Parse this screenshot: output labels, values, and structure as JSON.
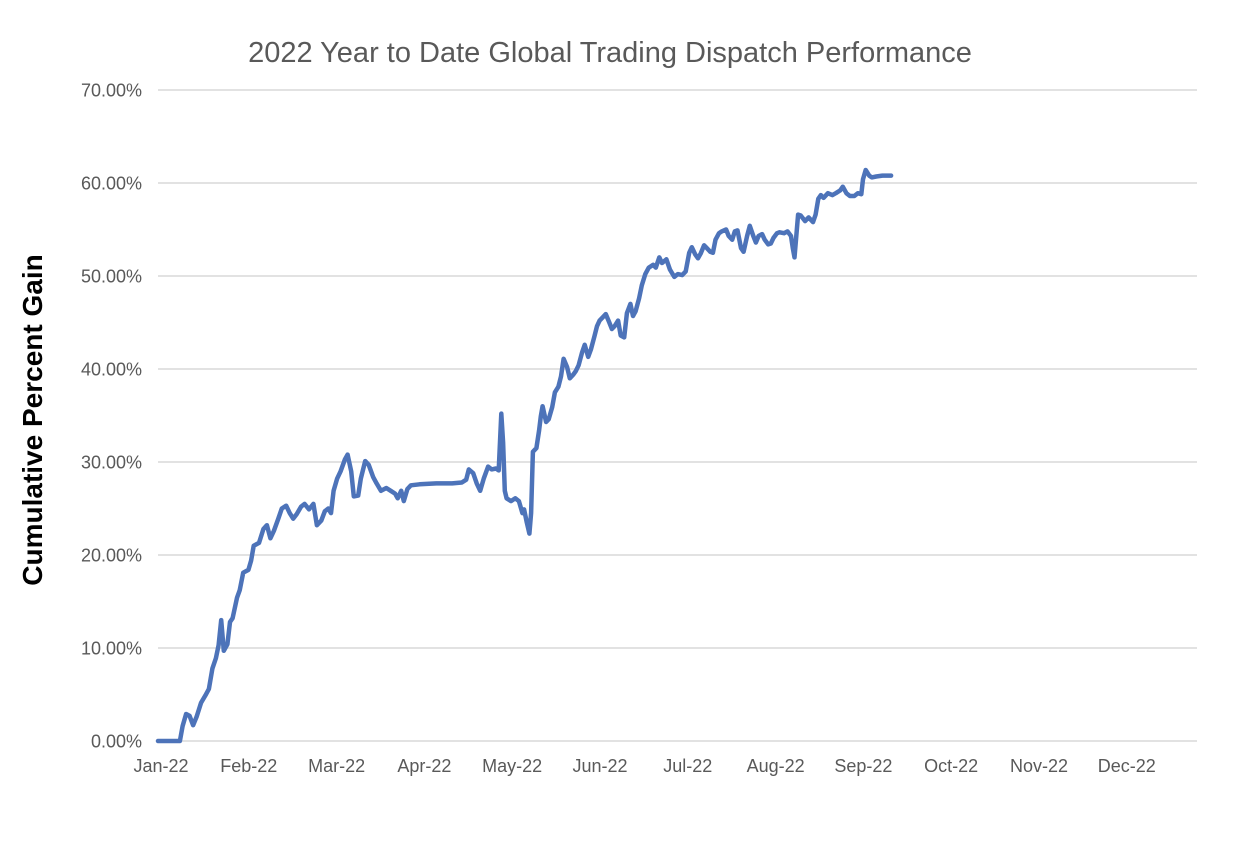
{
  "chart_data": {
    "type": "line",
    "title": "2022 Year to Date Global Trading Dispatch Performance",
    "ylabel": "Cumulative Percent Gain",
    "xlabel": "",
    "legend": "none",
    "grid": "horizontal",
    "background_color": "#ffffff",
    "grid_color": "#d9d9d9",
    "text_color": "#595959",
    "line_color": "#4d73b9",
    "ylim": [
      0,
      70
    ],
    "y_ticks": [
      {
        "value": 0,
        "label": "0.00%"
      },
      {
        "value": 10,
        "label": "10.00%"
      },
      {
        "value": 20,
        "label": "20.00%"
      },
      {
        "value": 30,
        "label": "30.00%"
      },
      {
        "value": 40,
        "label": "40.00%"
      },
      {
        "value": 50,
        "label": "50.00%"
      },
      {
        "value": 60,
        "label": "60.00%"
      },
      {
        "value": 70,
        "label": "70.00%"
      }
    ],
    "x_ticks": [
      "Jan-22",
      "Feb-22",
      "Mar-22",
      "Apr-22",
      "May-22",
      "Jun-22",
      "Jul-22",
      "Aug-22",
      "Sep-22",
      "Oct-22",
      "Nov-22",
      "Dec-22"
    ],
    "x_unit": "months since Jan-22 tick (0 = Jan-22)",
    "y_unit": "cumulative percent gain",
    "series": [
      {
        "name": "2022 YTD cumulative percent gain",
        "points": [
          [
            0.0,
            0.0
          ],
          [
            0.25,
            0.0
          ],
          [
            0.28,
            1.6
          ],
          [
            0.32,
            2.9
          ],
          [
            0.36,
            2.7
          ],
          [
            0.4,
            1.7
          ],
          [
            0.44,
            2.6
          ],
          [
            0.49,
            4.1
          ],
          [
            0.54,
            4.9
          ],
          [
            0.58,
            5.6
          ],
          [
            0.62,
            7.8
          ],
          [
            0.66,
            8.9
          ],
          [
            0.69,
            10.3
          ],
          [
            0.72,
            13.0
          ],
          [
            0.75,
            9.7
          ],
          [
            0.79,
            10.4
          ],
          [
            0.82,
            12.8
          ],
          [
            0.85,
            13.2
          ],
          [
            0.9,
            15.4
          ],
          [
            0.93,
            16.2
          ],
          [
            0.97,
            18.1
          ],
          [
            1.03,
            18.4
          ],
          [
            1.06,
            19.4
          ],
          [
            1.09,
            21.0
          ],
          [
            1.15,
            21.3
          ],
          [
            1.2,
            22.8
          ],
          [
            1.24,
            23.2
          ],
          [
            1.28,
            21.8
          ],
          [
            1.32,
            22.6
          ],
          [
            1.37,
            23.9
          ],
          [
            1.41,
            25.0
          ],
          [
            1.46,
            25.3
          ],
          [
            1.5,
            24.5
          ],
          [
            1.54,
            23.9
          ],
          [
            1.58,
            24.4
          ],
          [
            1.63,
            25.2
          ],
          [
            1.67,
            25.5
          ],
          [
            1.72,
            24.9
          ],
          [
            1.77,
            25.5
          ],
          [
            1.81,
            23.2
          ],
          [
            1.86,
            23.7
          ],
          [
            1.9,
            24.7
          ],
          [
            1.94,
            25.0
          ],
          [
            1.97,
            24.5
          ],
          [
            2.0,
            26.9
          ],
          [
            2.04,
            28.2
          ],
          [
            2.08,
            29.0
          ],
          [
            2.13,
            30.3
          ],
          [
            2.16,
            30.8
          ],
          [
            2.2,
            29.0
          ],
          [
            2.23,
            26.3
          ],
          [
            2.28,
            26.4
          ],
          [
            2.31,
            28.2
          ],
          [
            2.36,
            30.1
          ],
          [
            2.4,
            29.7
          ],
          [
            2.45,
            28.4
          ],
          [
            2.49,
            27.7
          ],
          [
            2.54,
            26.9
          ],
          [
            2.6,
            27.2
          ],
          [
            2.65,
            26.9
          ],
          [
            2.7,
            26.6
          ],
          [
            2.73,
            26.1
          ],
          [
            2.77,
            26.9
          ],
          [
            2.8,
            25.8
          ],
          [
            2.84,
            27.1
          ],
          [
            2.88,
            27.5
          ],
          [
            2.98,
            27.6
          ],
          [
            3.17,
            27.7
          ],
          [
            3.35,
            27.7
          ],
          [
            3.46,
            27.8
          ],
          [
            3.51,
            28.1
          ],
          [
            3.54,
            29.2
          ],
          [
            3.59,
            28.8
          ],
          [
            3.63,
            27.7
          ],
          [
            3.67,
            26.9
          ],
          [
            3.71,
            28.2
          ],
          [
            3.76,
            29.5
          ],
          [
            3.8,
            29.2
          ],
          [
            3.85,
            29.3
          ],
          [
            3.88,
            29.1
          ],
          [
            3.91,
            35.2
          ],
          [
            3.93,
            32.1
          ],
          [
            3.95,
            26.9
          ],
          [
            3.97,
            26.1
          ],
          [
            4.02,
            25.8
          ],
          [
            4.07,
            26.1
          ],
          [
            4.11,
            25.8
          ],
          [
            4.15,
            24.5
          ],
          [
            4.17,
            24.9
          ],
          [
            4.2,
            23.5
          ],
          [
            4.23,
            22.3
          ],
          [
            4.25,
            24.5
          ],
          [
            4.27,
            31.1
          ],
          [
            4.31,
            31.5
          ],
          [
            4.34,
            33.4
          ],
          [
            4.36,
            34.9
          ],
          [
            4.38,
            36.0
          ],
          [
            4.42,
            34.3
          ],
          [
            4.45,
            34.6
          ],
          [
            4.49,
            35.9
          ],
          [
            4.52,
            37.5
          ],
          [
            4.56,
            38.1
          ],
          [
            4.59,
            39.2
          ],
          [
            4.62,
            41.1
          ],
          [
            4.66,
            40.2
          ],
          [
            4.69,
            39.0
          ],
          [
            4.73,
            39.4
          ],
          [
            4.76,
            39.8
          ],
          [
            4.79,
            40.4
          ],
          [
            4.83,
            41.8
          ],
          [
            4.86,
            42.6
          ],
          [
            4.9,
            41.3
          ],
          [
            4.93,
            42.1
          ],
          [
            4.97,
            43.5
          ],
          [
            5.0,
            44.6
          ],
          [
            5.03,
            45.2
          ],
          [
            5.07,
            45.6
          ],
          [
            5.1,
            45.9
          ],
          [
            5.14,
            45.0
          ],
          [
            5.17,
            44.3
          ],
          [
            5.2,
            44.6
          ],
          [
            5.24,
            45.2
          ],
          [
            5.27,
            43.6
          ],
          [
            5.31,
            43.4
          ],
          [
            5.34,
            46.0
          ],
          [
            5.38,
            47.0
          ],
          [
            5.41,
            45.7
          ],
          [
            5.44,
            46.2
          ],
          [
            5.48,
            47.6
          ],
          [
            5.51,
            49.0
          ],
          [
            5.55,
            50.2
          ],
          [
            5.59,
            50.9
          ],
          [
            5.64,
            51.2
          ],
          [
            5.67,
            50.9
          ],
          [
            5.71,
            52.0
          ],
          [
            5.74,
            51.4
          ],
          [
            5.79,
            51.8
          ],
          [
            5.83,
            50.7
          ],
          [
            5.88,
            49.9
          ],
          [
            5.92,
            50.2
          ],
          [
            5.97,
            50.1
          ],
          [
            6.01,
            50.5
          ],
          [
            6.05,
            52.5
          ],
          [
            6.08,
            53.1
          ],
          [
            6.12,
            52.3
          ],
          [
            6.15,
            51.9
          ],
          [
            6.18,
            52.4
          ],
          [
            6.22,
            53.3
          ],
          [
            6.25,
            53.0
          ],
          [
            6.29,
            52.6
          ],
          [
            6.32,
            52.5
          ],
          [
            6.35,
            53.9
          ],
          [
            6.39,
            54.6
          ],
          [
            6.42,
            54.8
          ],
          [
            6.47,
            55.0
          ],
          [
            6.5,
            54.3
          ],
          [
            6.54,
            53.9
          ],
          [
            6.57,
            54.8
          ],
          [
            6.6,
            54.9
          ],
          [
            6.64,
            53.0
          ],
          [
            6.67,
            52.6
          ],
          [
            6.71,
            54.3
          ],
          [
            6.74,
            55.4
          ],
          [
            6.78,
            54.3
          ],
          [
            6.81,
            53.6
          ],
          [
            6.84,
            54.3
          ],
          [
            6.88,
            54.5
          ],
          [
            6.91,
            53.9
          ],
          [
            6.95,
            53.4
          ],
          [
            6.98,
            53.5
          ],
          [
            7.01,
            54.1
          ],
          [
            7.05,
            54.6
          ],
          [
            7.08,
            54.7
          ],
          [
            7.13,
            54.6
          ],
          [
            7.17,
            54.8
          ],
          [
            7.21,
            54.3
          ],
          [
            7.23,
            53.0
          ],
          [
            7.25,
            52.0
          ],
          [
            7.29,
            56.6
          ],
          [
            7.32,
            56.5
          ],
          [
            7.37,
            55.9
          ],
          [
            7.41,
            56.3
          ],
          [
            7.46,
            55.8
          ],
          [
            7.49,
            56.6
          ],
          [
            7.52,
            58.3
          ],
          [
            7.55,
            58.7
          ],
          [
            7.58,
            58.4
          ],
          [
            7.63,
            58.9
          ],
          [
            7.68,
            58.7
          ],
          [
            7.72,
            58.9
          ],
          [
            7.77,
            59.2
          ],
          [
            7.8,
            59.6
          ],
          [
            7.84,
            58.9
          ],
          [
            7.88,
            58.6
          ],
          [
            7.93,
            58.6
          ],
          [
            7.97,
            58.9
          ],
          [
            8.01,
            58.8
          ],
          [
            8.03,
            60.4
          ],
          [
            8.06,
            61.4
          ],
          [
            8.1,
            60.8
          ],
          [
            8.13,
            60.6
          ],
          [
            8.18,
            60.7
          ],
          [
            8.25,
            60.8
          ],
          [
            8.35,
            60.8
          ]
        ]
      }
    ]
  }
}
